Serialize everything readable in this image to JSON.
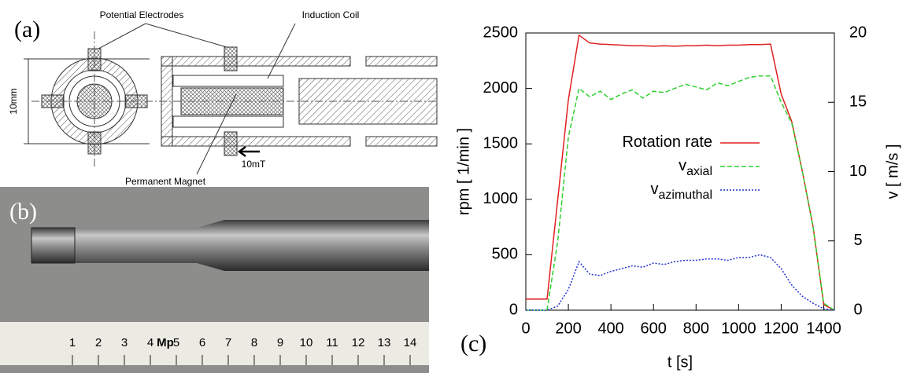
{
  "panels": {
    "a": "(a)",
    "b": "(b)",
    "c": "(c)"
  },
  "diagram": {
    "electrodes": "Potential Electrodes",
    "coil": "Induction Coil",
    "magnet": "Permanent Magnet",
    "size": "10mm",
    "field": "10mT"
  },
  "photo": {
    "ruler_labels": [
      "1",
      "2",
      "3",
      "4",
      "5",
      "6",
      "7",
      "8",
      "9",
      "10",
      "11",
      "12",
      "13",
      "14"
    ],
    "ruler_mark": "Mp"
  },
  "chart_data": {
    "type": "line",
    "xlabel": "t [s]",
    "ylabel": "rpm [ 1/min ]",
    "y2label": "v [ m/s ]",
    "x": [
      0,
      100,
      150,
      200,
      250,
      300,
      350,
      400,
      450,
      500,
      550,
      600,
      650,
      700,
      750,
      800,
      850,
      900,
      950,
      1000,
      1050,
      1100,
      1150,
      1200,
      1250,
      1300,
      1350,
      1400,
      1450
    ],
    "xlim": [
      0,
      1450
    ],
    "xticks": [
      0,
      200,
      400,
      600,
      800,
      1000,
      1200,
      1400
    ],
    "ylim": [
      0,
      2500
    ],
    "yticks": [
      0,
      500,
      1000,
      1500,
      2000,
      2500
    ],
    "y2lim": [
      0,
      20
    ],
    "y2ticks": [
      0,
      5,
      10,
      15,
      20
    ],
    "series": [
      {
        "name": "Rotation rate",
        "color": "#e02020",
        "dash": "solid",
        "values": [
          100,
          100,
          1000,
          1900,
          2480,
          2410,
          2400,
          2395,
          2390,
          2385,
          2385,
          2380,
          2385,
          2380,
          2385,
          2385,
          2390,
          2385,
          2390,
          2390,
          2395,
          2395,
          2400,
          1950,
          1700,
          1250,
          750,
          50,
          0
        ]
      },
      {
        "name": "v",
        "subscript": "axial",
        "color": "#30d030",
        "dash": "dashed",
        "axis": "y2",
        "values": [
          0,
          0,
          5,
          12.5,
          16,
          15.4,
          15.8,
          15.2,
          15.6,
          15.9,
          15.3,
          15.8,
          15.7,
          16.0,
          16.3,
          16.1,
          15.9,
          16.4,
          16.2,
          16.5,
          16.8,
          16.9,
          16.9,
          15.0,
          13.5,
          10.0,
          6.0,
          0.5,
          0
        ]
      },
      {
        "name": "v",
        "subscript": "azimuthal",
        "color": "#2030d0",
        "dash": "dotted",
        "axis": "y2",
        "values": [
          0,
          0,
          0.3,
          1.5,
          3.5,
          2.6,
          2.5,
          2.8,
          3.0,
          3.2,
          3.1,
          3.4,
          3.3,
          3.5,
          3.6,
          3.6,
          3.7,
          3.7,
          3.6,
          3.8,
          3.8,
          4.0,
          3.8,
          3.0,
          1.8,
          1.0,
          0.5,
          0.1,
          0
        ]
      }
    ]
  }
}
